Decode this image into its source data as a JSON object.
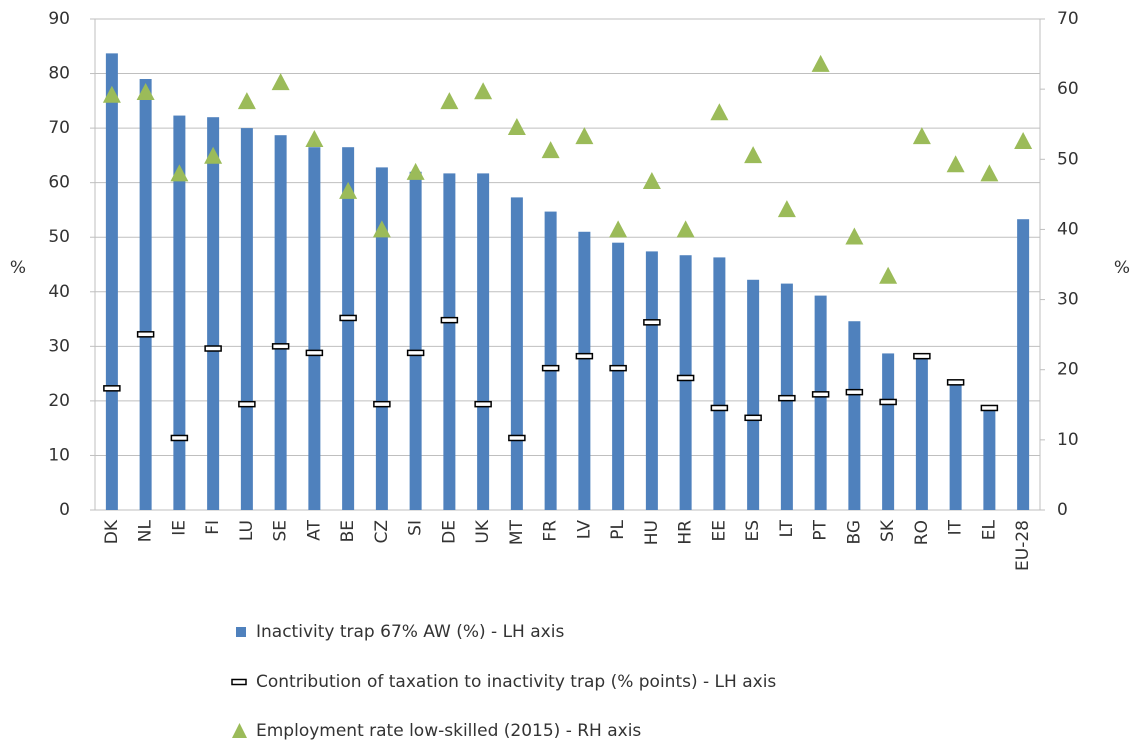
{
  "chart_data": {
    "type": "bar",
    "categories": [
      "DK",
      "NL",
      "IE",
      "FI",
      "LU",
      "SE",
      "AT",
      "BE",
      "CZ",
      "SI",
      "DE",
      "UK",
      "MT",
      "FR",
      "LV",
      "PL",
      "HU",
      "HR",
      "EE",
      "ES",
      "LT",
      "PT",
      "BG",
      "SK",
      "RO",
      "IT",
      "EL",
      "EU-28"
    ],
    "series": [
      {
        "name": "Inactivity trap 67% AW (%) - LH axis",
        "type": "bar",
        "color": "#4f81bd",
        "axis": "y",
        "values": [
          83.7,
          79,
          72.3,
          72,
          70,
          68.7,
          66.5,
          66.5,
          62.8,
          62,
          61.7,
          61.7,
          57.3,
          54.7,
          51,
          49,
          47.4,
          46.7,
          46.3,
          42.2,
          41.5,
          39.3,
          34.6,
          28.7,
          28.2,
          23.3,
          18.7,
          53.3
        ]
      },
      {
        "name": "Contribution of taxation to inactivity trap (% points) - LH axis",
        "type": "dash",
        "color": "#000000",
        "axis": "y",
        "values": [
          22.3,
          32.2,
          13.2,
          29.6,
          19.4,
          30,
          28.8,
          35.2,
          19.4,
          28.8,
          34.8,
          19.4,
          13.2,
          26,
          28.2,
          26,
          34.4,
          24.2,
          18.7,
          16.9,
          20.5,
          21.2,
          21.6,
          19.8,
          28.2,
          23.4,
          18.7,
          null
        ]
      },
      {
        "name": "Employment rate low-skilled (2015) - RH axis",
        "type": "triangle",
        "color": "#9bbb59",
        "axis": "y2",
        "values": [
          59.2,
          59.6,
          48,
          50.5,
          58.3,
          61,
          52.9,
          45.5,
          40,
          48.2,
          58.3,
          59.7,
          54.6,
          51.3,
          53.3,
          40,
          46.9,
          40,
          56.7,
          50.6,
          42.9,
          63.6,
          39,
          33.4,
          53.3,
          49.3,
          48,
          52.6
        ]
      }
    ],
    "y_label": "%",
    "y2_label": "%",
    "ylim": [
      0,
      90
    ],
    "yticks": [
      0,
      10,
      20,
      30,
      40,
      50,
      60,
      70,
      80,
      90
    ],
    "y2lim": [
      0,
      70
    ],
    "y2ticks": [
      0,
      10,
      20,
      30,
      40,
      50,
      60,
      70
    ],
    "grid": true
  }
}
